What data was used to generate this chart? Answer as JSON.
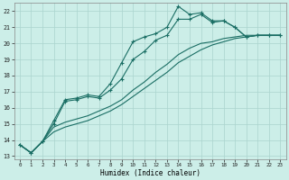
{
  "title": "",
  "xlabel": "Humidex (Indice chaleur)",
  "bg_color": "#cceee8",
  "grid_color": "#aad4ce",
  "line_color": "#1a6e64",
  "ylim": [
    12.8,
    22.5
  ],
  "xlim": [
    -0.5,
    23.5
  ],
  "yticks": [
    13,
    14,
    15,
    16,
    17,
    18,
    19,
    20,
    21,
    22
  ],
  "xticks": [
    0,
    1,
    2,
    3,
    4,
    5,
    6,
    7,
    8,
    9,
    10,
    11,
    12,
    13,
    14,
    15,
    16,
    17,
    18,
    19,
    20,
    21,
    22,
    23
  ],
  "line1_x": [
    0,
    1,
    2,
    3,
    4,
    5,
    6,
    7,
    8,
    9,
    10,
    11,
    12,
    13,
    14,
    15,
    16,
    17,
    18,
    19,
    20,
    21,
    22,
    23
  ],
  "line1_y": [
    13.7,
    13.2,
    13.9,
    15.2,
    16.5,
    16.6,
    16.8,
    16.7,
    17.5,
    18.8,
    20.1,
    20.4,
    20.6,
    21.0,
    22.3,
    21.8,
    21.9,
    21.4,
    21.4,
    21.0,
    20.4,
    20.5,
    20.5,
    20.5
  ],
  "line2_x": [
    0,
    1,
    2,
    3,
    4,
    5,
    6,
    7,
    8,
    9,
    10,
    11,
    12,
    13,
    14,
    15,
    16,
    17,
    18,
    19,
    20,
    21,
    22,
    23
  ],
  "line2_y": [
    13.7,
    13.2,
    13.9,
    15.0,
    16.4,
    16.5,
    16.7,
    16.6,
    17.1,
    17.8,
    19.0,
    19.5,
    20.2,
    20.5,
    21.5,
    21.5,
    21.8,
    21.3,
    21.4,
    21.0,
    20.4,
    20.5,
    20.5,
    20.5
  ],
  "line3_x": [
    0,
    1,
    2,
    3,
    4,
    5,
    6,
    7,
    8,
    9,
    10,
    11,
    12,
    13,
    14,
    15,
    16,
    17,
    18,
    19,
    20,
    21,
    22,
    23
  ],
  "line3_y": [
    13.7,
    13.2,
    13.9,
    14.8,
    15.1,
    15.3,
    15.5,
    15.8,
    16.1,
    16.5,
    17.1,
    17.6,
    18.2,
    18.7,
    19.3,
    19.7,
    20.0,
    20.1,
    20.3,
    20.4,
    20.5,
    20.5,
    20.5,
    20.5
  ],
  "line4_x": [
    0,
    1,
    2,
    3,
    4,
    5,
    6,
    7,
    8,
    9,
    10,
    11,
    12,
    13,
    14,
    15,
    16,
    17,
    18,
    19,
    20,
    21,
    22,
    23
  ],
  "line4_y": [
    13.7,
    13.2,
    13.9,
    14.5,
    14.8,
    15.0,
    15.2,
    15.5,
    15.8,
    16.2,
    16.7,
    17.2,
    17.7,
    18.2,
    18.8,
    19.2,
    19.6,
    19.9,
    20.1,
    20.3,
    20.4,
    20.5,
    20.5,
    20.5
  ]
}
